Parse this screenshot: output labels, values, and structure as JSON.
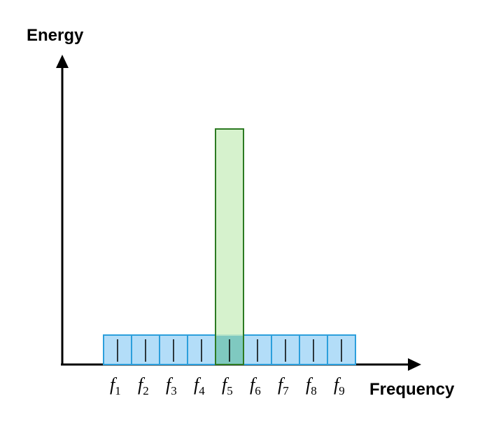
{
  "chart_data": {
    "type": "bar",
    "title": "",
    "ylabel": "Energy",
    "xlabel": "Frequency",
    "categories": [
      {
        "symbol": "f",
        "sub": "1"
      },
      {
        "symbol": "f",
        "sub": "2"
      },
      {
        "symbol": "f",
        "sub": "3"
      },
      {
        "symbol": "f",
        "sub": "4"
      },
      {
        "symbol": "f",
        "sub": "5"
      },
      {
        "symbol": "f",
        "sub": "6"
      },
      {
        "symbol": "f",
        "sub": "7"
      },
      {
        "symbol": "f",
        "sub": "8"
      },
      {
        "symbol": "f",
        "sub": "9"
      }
    ],
    "series": [
      {
        "values": [
          1,
          1,
          1,
          1,
          1,
          1,
          1,
          1,
          1
        ],
        "color": "#b3ddf8",
        "stroke": "#2c9fdc"
      },
      {
        "values": [
          0,
          0,
          0,
          0,
          8,
          0,
          0,
          0,
          0
        ],
        "color": "#cff0c4",
        "stroke": "#2c7a22"
      }
    ],
    "ylim": [
      0,
      10
    ],
    "grid": false,
    "legend": "none"
  }
}
